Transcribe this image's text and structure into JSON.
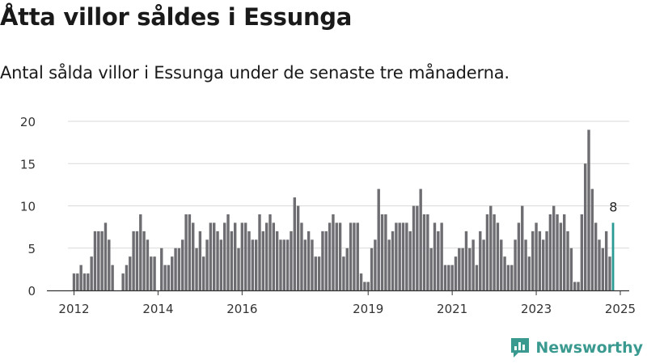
{
  "header": {
    "title": "Åtta villor såldes i Essunga",
    "subtitle": "Antal sålda villor i Essunga under de senaste tre månaderna."
  },
  "brand": {
    "name": "Newsworthy",
    "color": "#3a9a90"
  },
  "chart_data": {
    "type": "bar",
    "x_start": "2012-01",
    "x_ticks": [
      "2012",
      "2014",
      "2016",
      "2019",
      "2021",
      "2023",
      "2025"
    ],
    "y_ticks": [
      0,
      5,
      10,
      15,
      20
    ],
    "ylim": [
      0,
      20
    ],
    "grid": true,
    "values": [
      2,
      2,
      3,
      2,
      2,
      4,
      7,
      7,
      7,
      8,
      6,
      3,
      0,
      0,
      2,
      3,
      4,
      7,
      7,
      9,
      7,
      6,
      4,
      4,
      0,
      5,
      3,
      3,
      4,
      5,
      5,
      6,
      9,
      9,
      8,
      5,
      7,
      4,
      6,
      8,
      8,
      7,
      6,
      8,
      9,
      7,
      8,
      5,
      8,
      8,
      7,
      6,
      6,
      9,
      7,
      8,
      9,
      8,
      7,
      6,
      6,
      6,
      7,
      11,
      10,
      8,
      6,
      7,
      6,
      4,
      4,
      7,
      7,
      8,
      9,
      8,
      8,
      4,
      5,
      8,
      8,
      8,
      2,
      1,
      1,
      5,
      6,
      12,
      9,
      9,
      6,
      7,
      8,
      8,
      8,
      8,
      7,
      10,
      10,
      12,
      9,
      9,
      5,
      8,
      7,
      8,
      3,
      3,
      3,
      4,
      5,
      5,
      7,
      5,
      6,
      3,
      7,
      6,
      9,
      10,
      9,
      8,
      6,
      4,
      3,
      3,
      6,
      8,
      10,
      6,
      4,
      7,
      8,
      7,
      6,
      7,
      9,
      10,
      9,
      8,
      9,
      7,
      5,
      1,
      1,
      9,
      15,
      19,
      12,
      8,
      6,
      5,
      7,
      4,
      8
    ],
    "highlight": {
      "value": 8,
      "label": "8",
      "color": "#2b9a93"
    },
    "bar_color": "#6e6d71"
  }
}
